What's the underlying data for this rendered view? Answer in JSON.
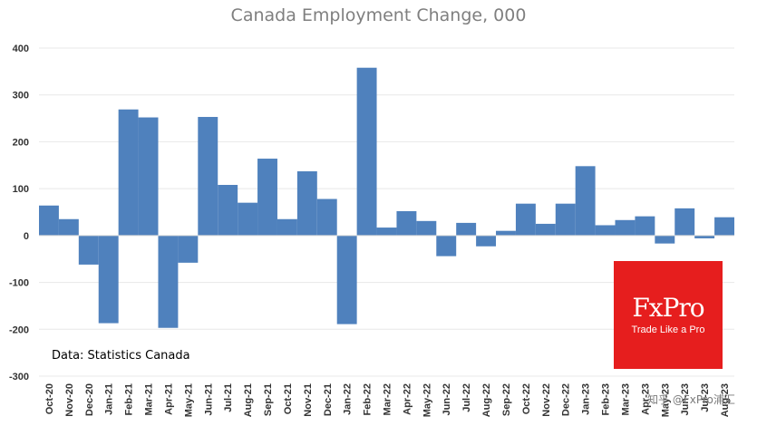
{
  "chart_data": {
    "type": "bar",
    "title": "Canada Employment Change, 000",
    "xlabel": "",
    "ylabel": "",
    "ylim": [
      -300,
      400
    ],
    "yticks": [
      400,
      300,
      200,
      100,
      0,
      -100,
      -200,
      -300
    ],
    "ytick_labels": [
      "400",
      "300",
      "200",
      "100",
      "0",
      "-100",
      "-200",
      "-300"
    ],
    "grid": true,
    "bar_color": "#4f81bd",
    "grid_color": "#e8e8e8",
    "categories": [
      "Oct-20",
      "Nov-20",
      "Dec-20",
      "Jan-21",
      "Feb-21",
      "Mar-21",
      "Apr-21",
      "May-21",
      "Jun-21",
      "Jul-21",
      "Aug-21",
      "Sep-21",
      "Oct-21",
      "Nov-21",
      "Dec-21",
      "Jan-22",
      "Feb-22",
      "Mar-22",
      "Apr-22",
      "May-22",
      "Jun-22",
      "Jul-22",
      "Aug-22",
      "Sep-22",
      "Oct-22",
      "Nov-22",
      "Dec-22",
      "Jan-23",
      "Feb-23",
      "Mar-23",
      "Apr-23",
      "May-23",
      "Jun-23",
      "Jul-23",
      "Aug-23"
    ],
    "values": [
      64,
      35,
      -62,
      -187,
      269,
      252,
      -197,
      -58,
      253,
      108,
      70,
      164,
      35,
      137,
      78,
      -189,
      358,
      17,
      52,
      31,
      -44,
      27,
      -23,
      10,
      68,
      25,
      68,
      148,
      22,
      33,
      41,
      -17,
      58,
      -6,
      39
    ]
  },
  "annotations": {
    "source_note": "Data: Statistics Canada",
    "logo_name": "FxPro",
    "logo_tagline": "Trade Like a Pro",
    "logo_color": "#e61e1e",
    "watermark": "知乎 @FxPro浦汇"
  }
}
